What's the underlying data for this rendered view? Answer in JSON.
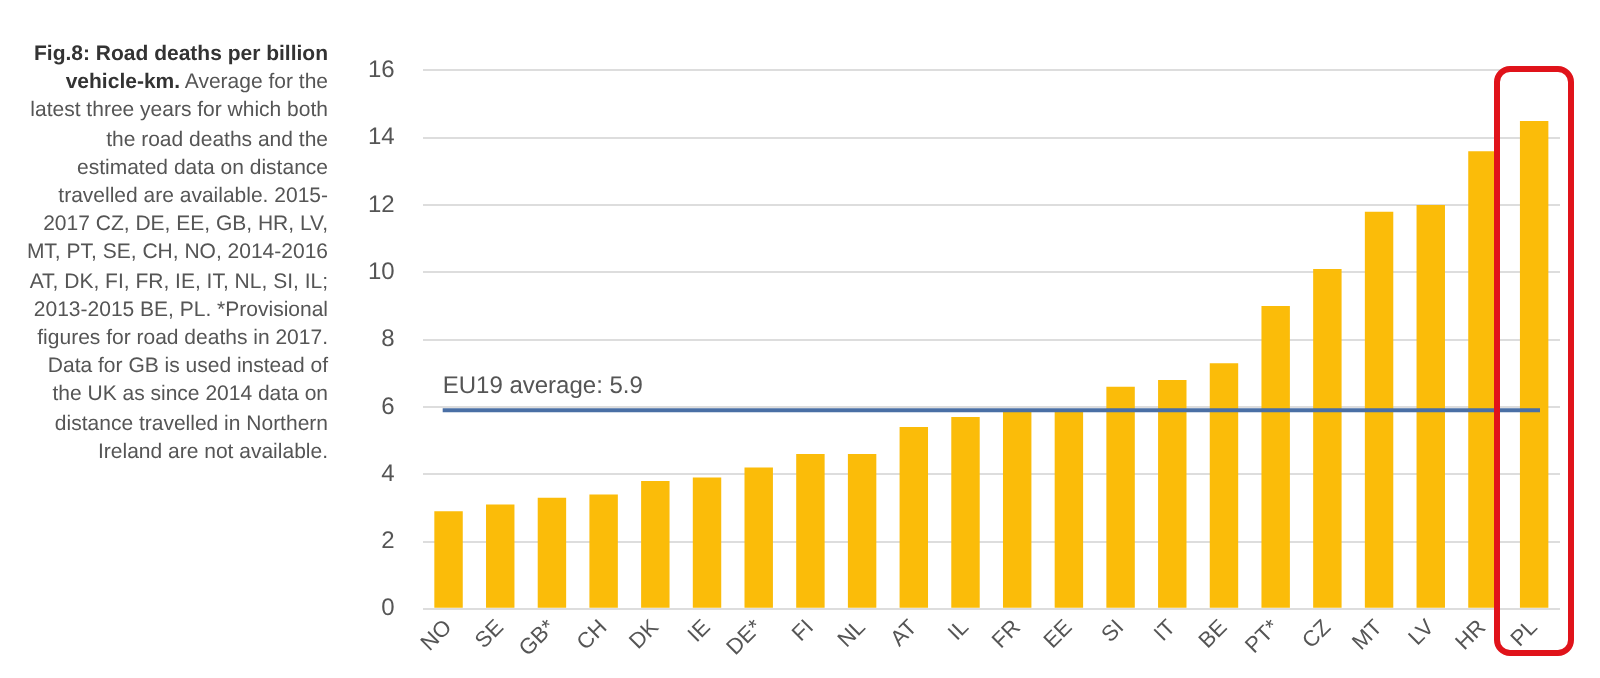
{
  "chart_data": {
    "type": "bar",
    "title": "Fig.8: Road deaths per billion vehicle-km.",
    "subtitle": "Average for the latest three years for which both the road deaths and the estimated data on distance travelled are available. 2015-2017 CZ, DE, EE, GB, HR, LV, MT, PT, SE, CH, NO, 2014-2016 AT, DK, FI, FR, IE, IT, NL, SI, IL; 2013-2015 BE, PL. *Provisional figures for road deaths in 2017. Data for GB is used instead of the UK as since 2014 data on distance travelled in Northern Ireland are not available.",
    "categories": [
      "NO",
      "SE",
      "GB*",
      "CH",
      "DK",
      "IE",
      "DE*",
      "FI",
      "NL",
      "AT",
      "IL",
      "FR",
      "EE",
      "SI",
      "IT",
      "BE",
      "PT*",
      "CZ",
      "MT",
      "LV",
      "HR",
      "PL"
    ],
    "values": [
      2.9,
      3.1,
      3.3,
      3.4,
      3.8,
      3.9,
      4.2,
      4.6,
      4.6,
      5.4,
      5.7,
      5.9,
      5.9,
      6.6,
      6.8,
      7.3,
      9.0,
      10.1,
      11.8,
      12.0,
      13.6,
      14.5
    ],
    "color": "#fbbc09",
    "ylim": [
      0,
      16
    ],
    "yticks": [
      0,
      2,
      4,
      6,
      8,
      10,
      12,
      14,
      16
    ],
    "grid": "y",
    "ref_lines": [
      {
        "axis": "y",
        "value": 5.9,
        "label": "EU19 average: 5.9",
        "color": "#4a6fa5"
      }
    ]
  }
}
